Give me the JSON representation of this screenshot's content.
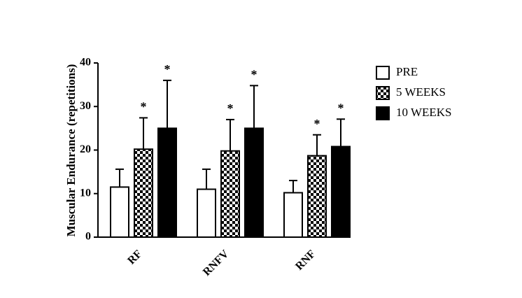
{
  "chart_data": {
    "type": "bar",
    "y_label": "Muscular Endurance (repetitions)",
    "categories": [
      "RF",
      "RNFV",
      "RNF"
    ],
    "ylim": [
      0,
      40
    ],
    "yticks": [
      0,
      10,
      20,
      30,
      40
    ],
    "legend": "right",
    "series": [
      {
        "name": "PRE",
        "color": "#ffffff",
        "values": [
          11.5,
          11,
          10.2
        ],
        "errors": [
          4.1,
          4.6,
          2.8
        ]
      },
      {
        "name": "5 WEEKS",
        "color": "#000000",
        "pattern": "checkerboard",
        "values": [
          20.2,
          19.8,
          18.7
        ],
        "errors": [
          7.2,
          7.2,
          4.8
        ],
        "significance": [
          "*",
          "*",
          "*"
        ]
      },
      {
        "name": "10 WEEKS",
        "color": "#000000",
        "values": [
          25,
          25,
          20.8
        ],
        "errors": [
          11,
          9.8,
          6.3
        ],
        "significance": [
          "*",
          "*",
          "*"
        ]
      }
    ]
  }
}
